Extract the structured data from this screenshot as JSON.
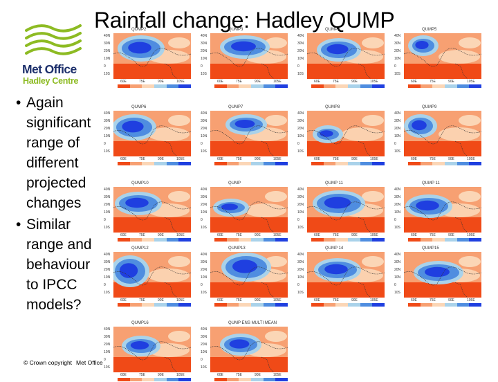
{
  "slide": {
    "title": "Rainfall change: Hadley QUMP",
    "bullets": [
      "Again significant range of different projected changes",
      "Similar range and behaviour to IPCC models?"
    ],
    "footer": {
      "copyright": "© Crown copyright",
      "org": "Met Office"
    }
  },
  "logo": {
    "name": "Met Office",
    "subtitle": "Hadley Centre",
    "icon": "met-office-waves-icon"
  },
  "colors": {
    "logo_green": "#8dbb23",
    "logo_navy": "#1c2f6b",
    "dry_strong": "#f04a17",
    "dry_mid": "#f7a072",
    "dry_light": "#fbd6b6",
    "wet_light": "#a9d2ea",
    "wet_mid": "#4f8de0",
    "wet_strong": "#1f3fe0"
  },
  "figure": {
    "panel_titles": [
      "QUMP2",
      "QUMP3",
      "QUMP4",
      "QUMP5",
      "QUMP6",
      "QUMP7",
      "QUMP8",
      "QUMP9",
      "QUMP10",
      "QUMP",
      "QUMP 11",
      "QUMP 11",
      "QUMP12",
      "QUMP13",
      "QUMP 14",
      "QUMP15",
      "QUMP16",
      "QUMP ENS MULTI MEAN"
    ],
    "lat_labels": [
      "40N",
      "30N",
      "20N",
      "10N",
      "0",
      "10S"
    ],
    "lon_labels": [
      "60E",
      "75E",
      "90E",
      "105E"
    ],
    "colorbar_labels": "-20 -10 0 10 20 30 40 50 60"
  }
}
